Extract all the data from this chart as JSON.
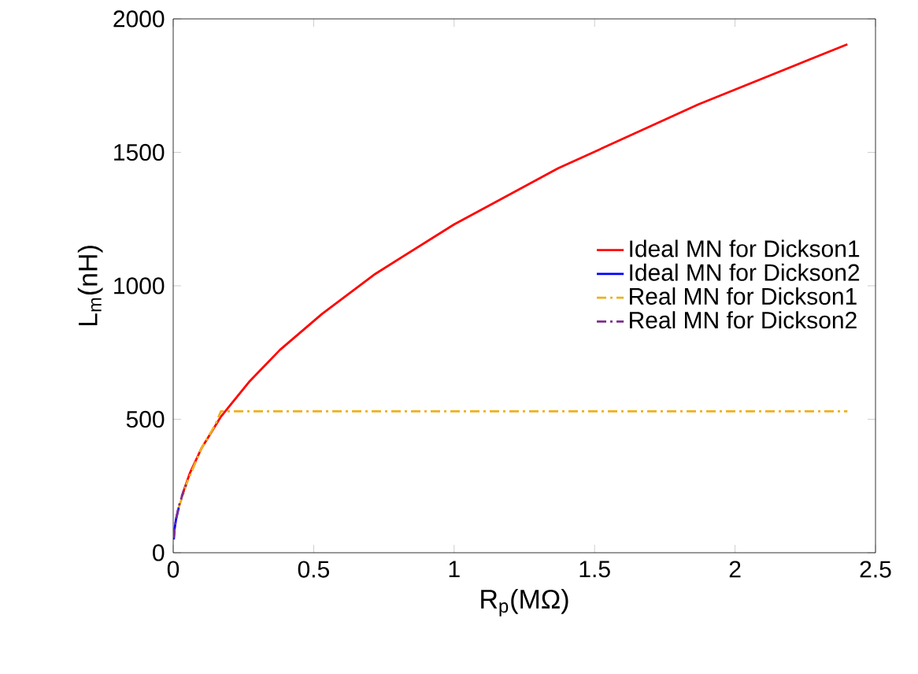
{
  "chart_data": {
    "type": "line",
    "xlabel": "R$_{p}$(MΩ)",
    "ylabel": "L$_{m}$(nH)",
    "xlim": [
      0,
      2.5
    ],
    "ylim": [
      0,
      2000
    ],
    "xticks": [
      0,
      0.5,
      1,
      1.5,
      2,
      2.5
    ],
    "yticks": [
      0,
      500,
      1000,
      1500,
      2000
    ],
    "grid": false,
    "legend": "right",
    "marker": "none",
    "series": [
      {
        "name": "Ideal MN for Dickson1",
        "color": "#ff0000",
        "line_style": "solid",
        "x": [
          0.03,
          0.06,
          0.1,
          0.17,
          0.27,
          0.38,
          0.53,
          0.72,
          1.0,
          1.37,
          1.87,
          2.4
        ],
        "values": [
          210,
          300,
          390,
          510,
          640,
          760,
          895,
          1045,
          1230,
          1440,
          1680,
          1905
        ]
      },
      {
        "name": "Ideal MN for Dickson2",
        "color": "#0000ff",
        "line_style": "solid",
        "x": [
          0.002,
          0.005,
          0.01,
          0.02
        ],
        "values": [
          50,
          90,
          125,
          170
        ]
      },
      {
        "name": "Real MN for Dickson1",
        "color": "#edb120",
        "line_style": "dashdot",
        "x": [
          0.02,
          0.05,
          0.1,
          0.15,
          0.17,
          2.4
        ],
        "values": [
          170,
          265,
          390,
          480,
          530,
          530
        ]
      },
      {
        "name": "Real MN for Dickson2",
        "color": "#7e2f8e",
        "line_style": "dashdot",
        "x": [
          0.002,
          0.005,
          0.01,
          0.02,
          0.04,
          0.05
        ],
        "values": [
          55,
          90,
          125,
          175,
          240,
          265
        ]
      }
    ]
  }
}
